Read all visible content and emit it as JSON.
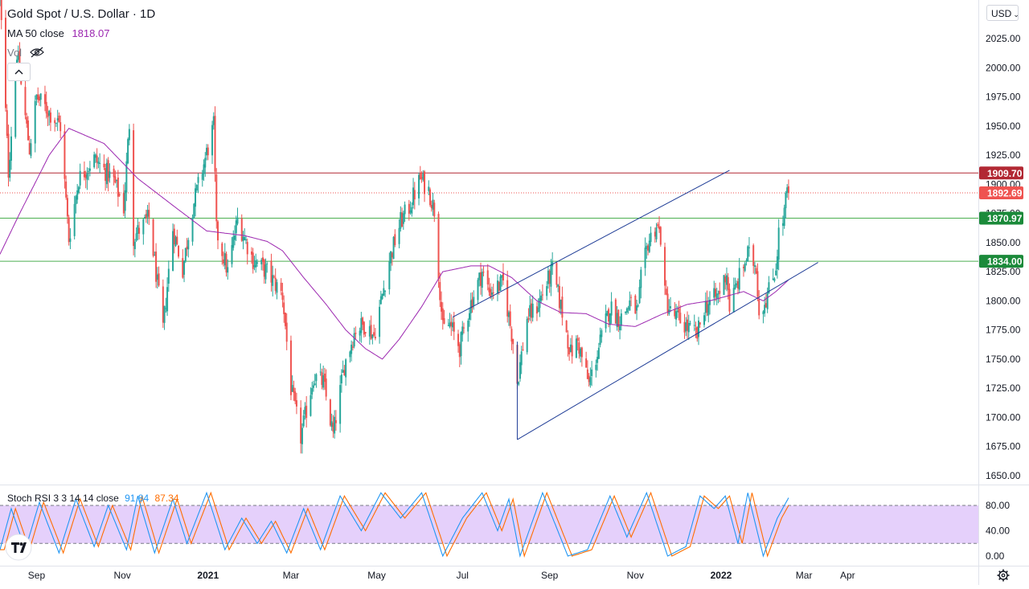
{
  "header": {
    "title": "Gold Spot / U.S. Dollar · 1D",
    "ma_label": "MA 50 close",
    "ma_value": "1818.07",
    "vol_label": "Vol",
    "currency": "USD"
  },
  "oscillator": {
    "label": "Stoch RSI 3 3 14 14 close",
    "k_value": "91.84",
    "d_value": "87.34",
    "levels": [
      80,
      20
    ],
    "ticks": [
      "80.00",
      "40.00",
      "0.00"
    ]
  },
  "colors": {
    "up": "#26a69a",
    "down": "#ef5350",
    "ma": "#9c27b0",
    "channel": "#1e3c96",
    "support": "#4caf50",
    "resistance": "#b22833",
    "stoch_k": "#2196f3",
    "stoch_d": "#ff6d00",
    "stoch_band": "#e1c8fa"
  },
  "chart_data": [
    {
      "type": "candlestick",
      "title": "Gold Spot / U.S. Dollar · 1D",
      "xlabel": "",
      "ylabel": "",
      "ylim": [
        1645,
        2040
      ],
      "y_ticks": [
        "2025.00",
        "2000.00",
        "1975.00",
        "1950.00",
        "1925.00",
        "1900.00",
        "1875.00",
        "1850.00",
        "1825.00",
        "1800.00",
        "1775.00",
        "1750.00",
        "1725.00",
        "1700.00",
        "1675.00",
        "1650.00"
      ],
      "x_ticks": [
        "Sep",
        "Nov",
        "2021",
        "Mar",
        "May",
        "Jul",
        "Sep",
        "Nov",
        "2022",
        "Mar",
        "Apr"
      ],
      "grid": false,
      "price_path": [
        {
          "date": "2020-08-06",
          "value": 2063
        },
        {
          "date": "2020-08-12",
          "value": 1911
        },
        {
          "date": "2020-08-18",
          "value": 2013
        },
        {
          "date": "2020-08-27",
          "value": 1930
        },
        {
          "date": "2020-09-01",
          "value": 1975
        },
        {
          "date": "2020-09-18",
          "value": 1950
        },
        {
          "date": "2020-09-24",
          "value": 1853
        },
        {
          "date": "2020-10-01",
          "value": 1905
        },
        {
          "date": "2020-10-12",
          "value": 1922
        },
        {
          "date": "2020-10-26",
          "value": 1903
        },
        {
          "date": "2020-11-02",
          "value": 1880
        },
        {
          "date": "2020-11-06",
          "value": 1952
        },
        {
          "date": "2020-11-09",
          "value": 1855
        },
        {
          "date": "2020-11-20",
          "value": 1871
        },
        {
          "date": "2020-11-30",
          "value": 1776
        },
        {
          "date": "2020-12-07",
          "value": 1862
        },
        {
          "date": "2020-12-14",
          "value": 1827
        },
        {
          "date": "2020-12-21",
          "value": 1880
        },
        {
          "date": "2021-01-05",
          "value": 1950
        },
        {
          "date": "2021-01-07",
          "value": 1860
        },
        {
          "date": "2021-01-15",
          "value": 1825
        },
        {
          "date": "2021-01-22",
          "value": 1870
        },
        {
          "date": "2021-02-02",
          "value": 1835
        },
        {
          "date": "2021-02-12",
          "value": 1825
        },
        {
          "date": "2021-02-23",
          "value": 1805
        },
        {
          "date": "2021-03-01",
          "value": 1725
        },
        {
          "date": "2021-03-08",
          "value": 1683
        },
        {
          "date": "2021-03-17",
          "value": 1735
        },
        {
          "date": "2021-03-24",
          "value": 1730
        },
        {
          "date": "2021-03-31",
          "value": 1685
        },
        {
          "date": "2021-04-08",
          "value": 1745
        },
        {
          "date": "2021-04-16",
          "value": 1776
        },
        {
          "date": "2021-04-23",
          "value": 1780
        },
        {
          "date": "2021-04-29",
          "value": 1770
        },
        {
          "date": "2021-05-10",
          "value": 1835
        },
        {
          "date": "2021-05-18",
          "value": 1868
        },
        {
          "date": "2021-05-24",
          "value": 1880
        },
        {
          "date": "2021-06-01",
          "value": 1905
        },
        {
          "date": "2021-06-07",
          "value": 1895
        },
        {
          "date": "2021-06-11",
          "value": 1878
        },
        {
          "date": "2021-06-17",
          "value": 1775
        },
        {
          "date": "2021-06-22",
          "value": 1780
        },
        {
          "date": "2021-06-29",
          "value": 1760
        },
        {
          "date": "2021-07-06",
          "value": 1795
        },
        {
          "date": "2021-07-15",
          "value": 1825
        },
        {
          "date": "2021-07-20",
          "value": 1808
        },
        {
          "date": "2021-07-30",
          "value": 1815
        },
        {
          "date": "2021-08-06",
          "value": 1765
        },
        {
          "date": "2021-08-09",
          "value": 1730
        },
        {
          "date": "2021-08-16",
          "value": 1785
        },
        {
          "date": "2021-08-23",
          "value": 1795
        },
        {
          "date": "2021-08-30",
          "value": 1815
        },
        {
          "date": "2021-09-03",
          "value": 1826
        },
        {
          "date": "2021-09-10",
          "value": 1790
        },
        {
          "date": "2021-09-16",
          "value": 1755
        },
        {
          "date": "2021-09-21",
          "value": 1765
        },
        {
          "date": "2021-09-29",
          "value": 1728
        },
        {
          "date": "2021-10-06",
          "value": 1760
        },
        {
          "date": "2021-10-14",
          "value": 1795
        },
        {
          "date": "2021-10-21",
          "value": 1784
        },
        {
          "date": "2021-10-28",
          "value": 1798
        },
        {
          "date": "2021-11-03",
          "value": 1790
        },
        {
          "date": "2021-11-05",
          "value": 1818
        },
        {
          "date": "2021-11-10",
          "value": 1850
        },
        {
          "date": "2021-11-16",
          "value": 1865
        },
        {
          "date": "2021-11-19",
          "value": 1855
        },
        {
          "date": "2021-11-22",
          "value": 1805
        },
        {
          "date": "2021-11-26",
          "value": 1790
        },
        {
          "date": "2021-12-03",
          "value": 1783
        },
        {
          "date": "2021-12-09",
          "value": 1776
        },
        {
          "date": "2021-12-15",
          "value": 1770
        },
        {
          "date": "2021-12-20",
          "value": 1795
        },
        {
          "date": "2021-12-30",
          "value": 1805
        },
        {
          "date": "2022-01-05",
          "value": 1825
        },
        {
          "date": "2022-01-07",
          "value": 1795
        },
        {
          "date": "2022-01-14",
          "value": 1820
        },
        {
          "date": "2022-01-20",
          "value": 1840
        },
        {
          "date": "2022-01-26",
          "value": 1830
        },
        {
          "date": "2022-01-28",
          "value": 1790
        },
        {
          "date": "2022-02-03",
          "value": 1805
        },
        {
          "date": "2022-02-07",
          "value": 1820
        },
        {
          "date": "2022-02-09",
          "value": 1830
        },
        {
          "date": "2022-02-11",
          "value": 1858
        },
        {
          "date": "2022-02-14",
          "value": 1868
        },
        {
          "date": "2022-02-17",
          "value": 1895
        },
        {
          "date": "2022-02-18",
          "value": 1893
        }
      ],
      "ma_50": [
        {
          "date": "2020-08-06",
          "value": 1840
        },
        {
          "date": "2020-08-20",
          "value": 1875
        },
        {
          "date": "2020-09-10",
          "value": 1925
        },
        {
          "date": "2020-09-24",
          "value": 1948
        },
        {
          "date": "2020-10-19",
          "value": 1935
        },
        {
          "date": "2020-11-12",
          "value": 1905
        },
        {
          "date": "2020-12-09",
          "value": 1880
        },
        {
          "date": "2020-12-31",
          "value": 1860
        },
        {
          "date": "2021-01-27",
          "value": 1856
        },
        {
          "date": "2021-02-12",
          "value": 1851
        },
        {
          "date": "2021-02-23",
          "value": 1843
        },
        {
          "date": "2021-03-10",
          "value": 1820
        },
        {
          "date": "2021-03-26",
          "value": 1797
        },
        {
          "date": "2021-04-09",
          "value": 1775
        },
        {
          "date": "2021-04-23",
          "value": 1759
        },
        {
          "date": "2021-05-05",
          "value": 1750
        },
        {
          "date": "2021-05-17",
          "value": 1767
        },
        {
          "date": "2021-06-02",
          "value": 1795
        },
        {
          "date": "2021-06-17",
          "value": 1825
        },
        {
          "date": "2021-07-07",
          "value": 1830
        },
        {
          "date": "2021-07-20",
          "value": 1830
        },
        {
          "date": "2021-08-05",
          "value": 1820
        },
        {
          "date": "2021-08-23",
          "value": 1800
        },
        {
          "date": "2021-09-09",
          "value": 1790
        },
        {
          "date": "2021-09-27",
          "value": 1789
        },
        {
          "date": "2021-10-13",
          "value": 1780
        },
        {
          "date": "2021-11-01",
          "value": 1778
        },
        {
          "date": "2021-11-19",
          "value": 1788
        },
        {
          "date": "2021-12-08",
          "value": 1797
        },
        {
          "date": "2021-12-24",
          "value": 1800
        },
        {
          "date": "2022-01-17",
          "value": 1808
        },
        {
          "date": "2022-01-31",
          "value": 1800
        },
        {
          "date": "2022-02-09",
          "value": 1808
        },
        {
          "date": "2022-02-18",
          "value": 1818
        }
      ],
      "horizontal_levels": [
        {
          "value": 1909.7,
          "label": "1909.70",
          "style": "solid",
          "color": "#b22833"
        },
        {
          "value": 1892.69,
          "label": "1892.69",
          "style": "dotted",
          "color": "#ef5350",
          "current_price": true
        },
        {
          "value": 1870.97,
          "label": "1870.97",
          "style": "solid",
          "color": "#4caf50"
        },
        {
          "value": 1834.0,
          "label": "1834.00",
          "style": "solid",
          "color": "#4caf50"
        }
      ],
      "trend_channel": {
        "lower": [
          {
            "date": "2021-08-09",
            "value": 1681
          },
          {
            "date": "2022-03-11",
            "value": 1833
          }
        ],
        "upper": [
          {
            "date": "2021-06-24",
            "value": 1786
          },
          {
            "date": "2022-01-07",
            "value": 1912
          }
        ],
        "anchor": [
          {
            "date": "2021-08-09",
            "value": 1681
          },
          {
            "date": "2021-08-09",
            "value": 1765
          }
        ]
      },
      "last_close": 1892.69
    },
    {
      "type": "line",
      "title": "Stoch RSI 3 3 14 14 close",
      "ylim": [
        -5,
        110
      ],
      "band": [
        20,
        80
      ],
      "series": [
        {
          "name": "K",
          "last": 91.84
        },
        {
          "name": "D",
          "last": 87.34
        }
      ],
      "turning_points": [
        {
          "date": "2020-08-06",
          "value": 10
        },
        {
          "date": "2020-08-14",
          "value": 75
        },
        {
          "date": "2020-08-24",
          "value": 10
        },
        {
          "date": "2020-09-03",
          "value": 85
        },
        {
          "date": "2020-09-17",
          "value": 5
        },
        {
          "date": "2020-09-29",
          "value": 90
        },
        {
          "date": "2020-10-12",
          "value": 15
        },
        {
          "date": "2020-10-22",
          "value": 80
        },
        {
          "date": "2020-11-04",
          "value": 10
        },
        {
          "date": "2020-11-12",
          "value": 95
        },
        {
          "date": "2020-11-24",
          "value": 5
        },
        {
          "date": "2020-12-07",
          "value": 90
        },
        {
          "date": "2020-12-17",
          "value": 20
        },
        {
          "date": "2020-12-31",
          "value": 100
        },
        {
          "date": "2021-01-13",
          "value": 10
        },
        {
          "date": "2021-01-25",
          "value": 60
        },
        {
          "date": "2021-02-05",
          "value": 20
        },
        {
          "date": "2021-02-15",
          "value": 55
        },
        {
          "date": "2021-02-26",
          "value": 5
        },
        {
          "date": "2021-03-10",
          "value": 75
        },
        {
          "date": "2021-03-22",
          "value": 10
        },
        {
          "date": "2021-04-05",
          "value": 95
        },
        {
          "date": "2021-04-20",
          "value": 40
        },
        {
          "date": "2021-05-04",
          "value": 100
        },
        {
          "date": "2021-05-18",
          "value": 60
        },
        {
          "date": "2021-06-02",
          "value": 100
        },
        {
          "date": "2021-06-17",
          "value": 0
        },
        {
          "date": "2021-07-01",
          "value": 60
        },
        {
          "date": "2021-07-15",
          "value": 100
        },
        {
          "date": "2021-07-26",
          "value": 40
        },
        {
          "date": "2021-08-03",
          "value": 90
        },
        {
          "date": "2021-08-11",
          "value": 0
        },
        {
          "date": "2021-08-27",
          "value": 100
        },
        {
          "date": "2021-09-14",
          "value": 0
        },
        {
          "date": "2021-09-28",
          "value": 10
        },
        {
          "date": "2021-10-14",
          "value": 95
        },
        {
          "date": "2021-10-26",
          "value": 30
        },
        {
          "date": "2021-11-09",
          "value": 100
        },
        {
          "date": "2021-11-24",
          "value": 0
        },
        {
          "date": "2021-12-07",
          "value": 15
        },
        {
          "date": "2021-12-17",
          "value": 95
        },
        {
          "date": "2021-12-27",
          "value": 75
        },
        {
          "date": "2022-01-04",
          "value": 95
        },
        {
          "date": "2022-01-13",
          "value": 20
        },
        {
          "date": "2022-01-20",
          "value": 100
        },
        {
          "date": "2022-01-31",
          "value": 0
        },
        {
          "date": "2022-02-10",
          "value": 60
        },
        {
          "date": "2022-02-18",
          "value": 92
        }
      ]
    }
  ]
}
